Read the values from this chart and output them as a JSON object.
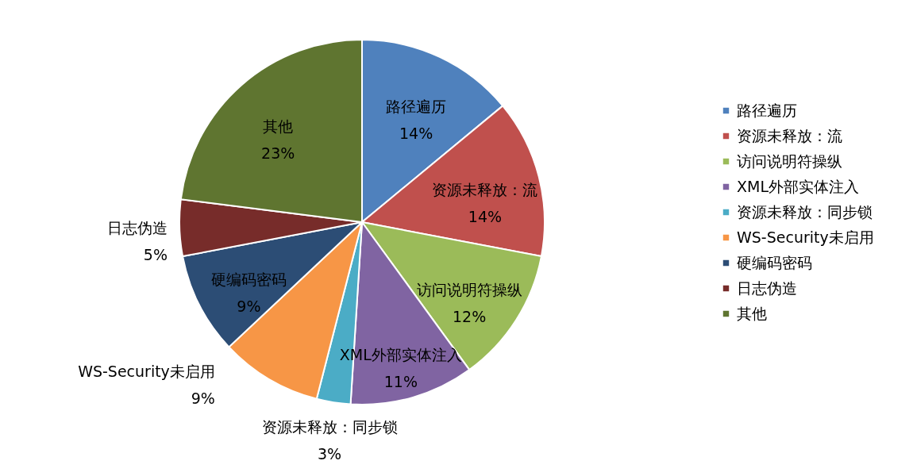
{
  "chart_data": {
    "type": "pie",
    "categories": [
      "路径遍历",
      "资源未释放：流",
      "访问说明符操纵",
      "XML外部实体注入",
      "资源未释放：同步锁",
      "WS-Security未启用",
      "硬编码密码",
      "日志伪造",
      "其他"
    ],
    "values": [
      14,
      14,
      12,
      11,
      3,
      9,
      9,
      5,
      23
    ],
    "value_labels": [
      "14%",
      "14%",
      "12%",
      "11%",
      "3%",
      "9%",
      "9%",
      "5%",
      "23%"
    ],
    "colors": [
      "#4f81bd",
      "#c0504d",
      "#9bbb59",
      "#8064a2",
      "#4bacc6",
      "#f79646",
      "#2c4d75",
      "#772c2a",
      "#5f7530"
    ],
    "legend": "right"
  }
}
